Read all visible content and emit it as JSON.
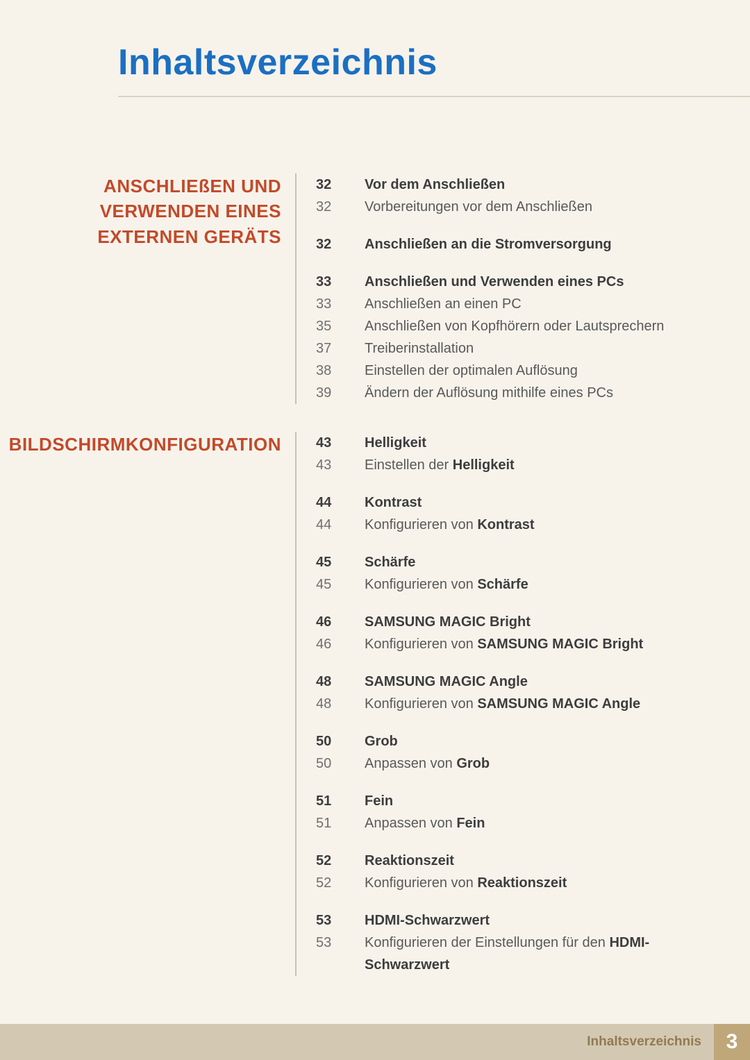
{
  "title": "Inhaltsverzeichnis",
  "colors": {
    "page_bg": "#f7f3eb",
    "title": "#1b6fc2",
    "chapter": "#c24a2a",
    "rule": "#c9c2b2",
    "footer_bar": "#d3c9b3",
    "footer_text": "#927a52",
    "footer_num_bg": "#bfa77a",
    "body_text": "#595959",
    "bold_text": "#3d3d3d"
  },
  "chapters": [
    {
      "title": "ANSCHLIEßEN UND VERWENDEN EINES EXTERNEN GERÄTS",
      "groups": [
        [
          {
            "page": "32",
            "text": "Vor dem Anschließen",
            "header": true
          },
          {
            "page": "32",
            "text": "Vorbereitungen vor dem Anschließen"
          }
        ],
        [
          {
            "page": "32",
            "text": "Anschließen an die Stromversorgung",
            "header": true
          }
        ],
        [
          {
            "page": "33",
            "text": "Anschließen und Verwenden eines PCs",
            "header": true
          },
          {
            "page": "33",
            "text": "Anschließen an einen PC"
          },
          {
            "page": "35",
            "text": "Anschließen von Kopfhörern oder Lautsprechern"
          },
          {
            "page": "37",
            "text": "Treiberinstallation"
          },
          {
            "page": "38",
            "text": "Einstellen der optimalen Auflösung"
          },
          {
            "page": "39",
            "text": "Ändern der Auflösung mithilfe eines PCs"
          }
        ]
      ]
    },
    {
      "title": "BILDSCHIRMKONFIGURATION",
      "groups": [
        [
          {
            "page": "43",
            "text": "Helligkeit",
            "header": true
          },
          {
            "page": "43",
            "text_pre": "Einstellen der ",
            "text_bold": "Helligkeit"
          }
        ],
        [
          {
            "page": "44",
            "text": "Kontrast",
            "header": true
          },
          {
            "page": "44",
            "text_pre": "Konfigurieren von ",
            "text_bold": "Kontrast"
          }
        ],
        [
          {
            "page": "45",
            "text": "Schärfe",
            "header": true
          },
          {
            "page": "45",
            "text_pre": "Konfigurieren von ",
            "text_bold": "Schärfe"
          }
        ],
        [
          {
            "page": "46",
            "text": "SAMSUNG MAGIC Bright",
            "header": true
          },
          {
            "page": "46",
            "text_pre": "Konfigurieren von ",
            "text_bold": "SAMSUNG MAGIC Bright"
          }
        ],
        [
          {
            "page": "48",
            "text": "SAMSUNG MAGIC Angle",
            "header": true
          },
          {
            "page": "48",
            "text_pre": "Konfigurieren von ",
            "text_bold": "SAMSUNG MAGIC Angle"
          }
        ],
        [
          {
            "page": "50",
            "text": "Grob",
            "header": true
          },
          {
            "page": "50",
            "text_pre": "Anpassen von ",
            "text_bold": "Grob"
          }
        ],
        [
          {
            "page": "51",
            "text": "Fein",
            "header": true
          },
          {
            "page": "51",
            "text_pre": "Anpassen von ",
            "text_bold": "Fein"
          }
        ],
        [
          {
            "page": "52",
            "text": "Reaktionszeit",
            "header": true
          },
          {
            "page": "52",
            "text_pre": "Konfigurieren von ",
            "text_bold": "Reaktionszeit"
          }
        ],
        [
          {
            "page": "53",
            "text": "HDMI-Schwarzwert",
            "header": true
          },
          {
            "page": "53",
            "text_pre": "Konfigurieren der Einstellungen für den ",
            "text_bold": "HDMI-Schwarzwert"
          }
        ]
      ]
    }
  ],
  "footer": {
    "label": "Inhaltsverzeichnis",
    "page_number": "3"
  }
}
